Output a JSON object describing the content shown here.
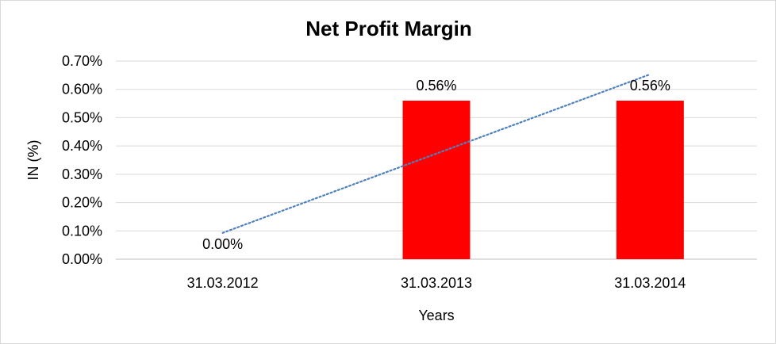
{
  "chart_data": {
    "type": "bar",
    "title": "Net Profit Margin",
    "xlabel": "Years",
    "ylabel": "IN (%)",
    "categories": [
      "31.03.2012",
      "31.03.2013",
      "31.03.2014"
    ],
    "series": [
      {
        "values": [
          0.0,
          0.56,
          0.56
        ],
        "data_labels": [
          "0.00%",
          "0.56%",
          "0.56%"
        ],
        "color": "#ff0000"
      }
    ],
    "trendline": {
      "type": "linear",
      "color": "#4f81bd",
      "style": "dotted",
      "values": [
        0.093,
        0.373,
        0.653
      ]
    },
    "ylim": [
      0,
      0.7
    ],
    "yticks": [
      0,
      0.1,
      0.2,
      0.3,
      0.4,
      0.5,
      0.6,
      0.7
    ],
    "ytick_labels": [
      "0.00%",
      "0.10%",
      "0.20%",
      "0.30%",
      "0.40%",
      "0.50%",
      "0.60%",
      "0.70%"
    ],
    "grid": true,
    "legend": "none"
  }
}
